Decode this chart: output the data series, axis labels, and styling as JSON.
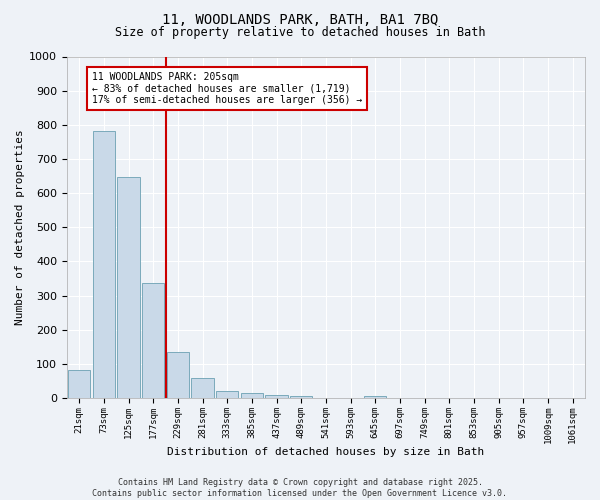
{
  "title_line1": "11, WOODLANDS PARK, BATH, BA1 7BQ",
  "title_line2": "Size of property relative to detached houses in Bath",
  "xlabel": "Distribution of detached houses by size in Bath",
  "ylabel": "Number of detached properties",
  "bar_labels": [
    "21sqm",
    "73sqm",
    "125sqm",
    "177sqm",
    "229sqm",
    "281sqm",
    "333sqm",
    "385sqm",
    "437sqm",
    "489sqm",
    "541sqm",
    "593sqm",
    "645sqm",
    "697sqm",
    "749sqm",
    "801sqm",
    "853sqm",
    "905sqm",
    "957sqm",
    "1009sqm",
    "1061sqm"
  ],
  "bar_values": [
    83,
    783,
    648,
    337,
    134,
    59,
    22,
    16,
    8,
    5,
    0,
    0,
    7,
    0,
    0,
    0,
    0,
    0,
    0,
    0,
    0
  ],
  "bar_color": "#c9d9e8",
  "bar_edge_color": "#7aaabb",
  "property_line_x": 4,
  "annotation_text": "11 WOODLANDS PARK: 205sqm\n← 83% of detached houses are smaller (1,719)\n17% of semi-detached houses are larger (356) →",
  "annotation_box_color": "#ffffff",
  "annotation_box_edgecolor": "#cc0000",
  "vline_color": "#cc0000",
  "ylim": [
    0,
    1000
  ],
  "background_color": "#eef2f7",
  "grid_color": "#ffffff",
  "copyright_text": "Contains HM Land Registry data © Crown copyright and database right 2025.\nContains public sector information licensed under the Open Government Licence v3.0."
}
